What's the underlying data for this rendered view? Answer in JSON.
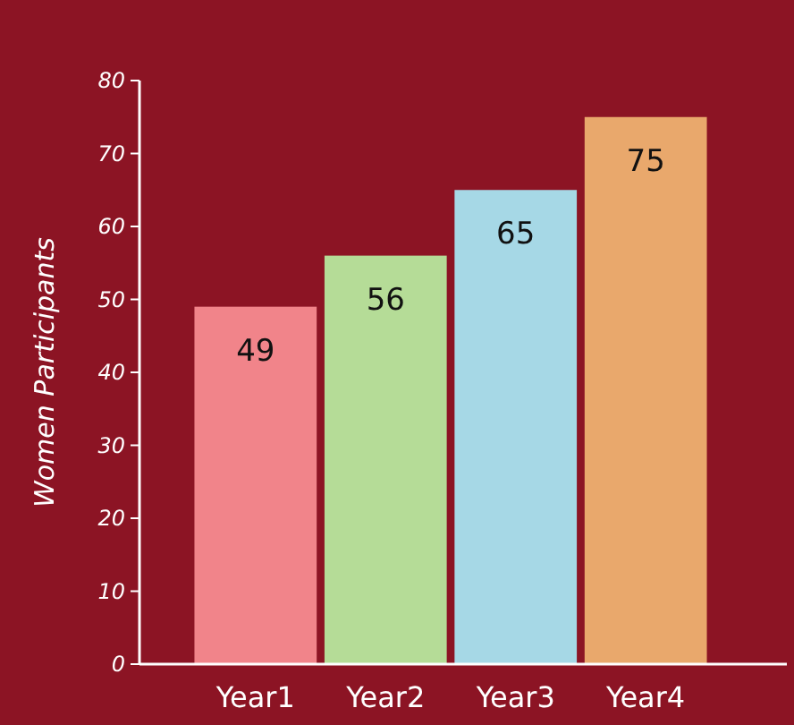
{
  "chart_data": {
    "type": "bar",
    "ylabel": "Women Participants",
    "categories": [
      "Year1",
      "Year2",
      "Year3",
      "Year4"
    ],
    "values": [
      49,
      56,
      65,
      75
    ],
    "colors": [
      "#f1848a",
      "#b5dc97",
      "#a6d8e6",
      "#e9a86c"
    ],
    "ylim": [
      0,
      80
    ],
    "yticks": [
      0,
      10,
      20,
      30,
      40,
      50,
      60,
      70,
      80
    ],
    "data_labels": true
  }
}
